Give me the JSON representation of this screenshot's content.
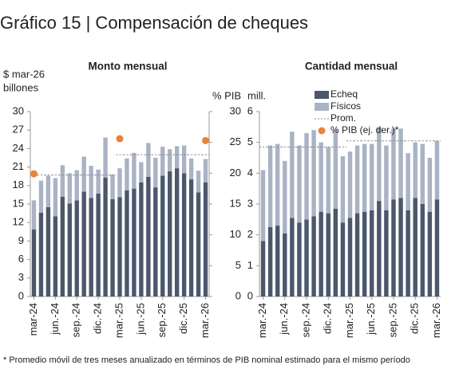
{
  "title": "Gráfico 15 | Compensación de cheques",
  "footnote": "* Promedio móvil de tres meses anualizado en términos de PIB nominal estimado para el mismo período",
  "chart_data": [
    {
      "type": "bar",
      "stacked": true,
      "title": "Monto mensual",
      "ylabel": [
        "$ mar-26",
        "billones"
      ],
      "y2label": "% PIB",
      "categories": [
        "mar-24",
        null,
        null,
        "jun.-24",
        null,
        null,
        "sep.-24",
        null,
        null,
        "dic.-24",
        null,
        null,
        "mar.-25",
        null,
        null,
        "jun.-25",
        null,
        null,
        "sep.-25",
        null,
        null,
        "dic.-25",
        null,
        null,
        "mar.-26"
      ],
      "series": [
        {
          "color": "#4b576b",
          "values": [
            10.9,
            13.6,
            14.5,
            13.0,
            16.2,
            15.1,
            15.6,
            17.0,
            16.0,
            16.7,
            19.3,
            15.8,
            16.1,
            17.2,
            17.5,
            18.5,
            19.4,
            17.7,
            19.6,
            20.3,
            20.8,
            20.0,
            19.0,
            16.9,
            18.5
          ]
        },
        {
          "color": "#a9b3c4",
          "values": [
            4.7,
            5.2,
            5.1,
            6.2,
            5.1,
            4.9,
            4.9,
            5.7,
            5.2,
            3.9,
            6.5,
            4.0,
            4.7,
            5.2,
            5.8,
            3.3,
            5.5,
            4.8,
            4.7,
            3.6,
            3.6,
            4.5,
            3.4,
            3.5,
            3.8
          ]
        },
        {
          "type": "line",
          "dashed": true,
          "color": "#8a8a8a",
          "values": [
            19.7,
            19.7,
            19.7,
            19.7,
            19.7,
            19.7,
            19.7,
            19.7,
            19.7,
            19.7,
            19.7,
            19.7,
            23.0,
            23.0,
            23.0,
            23.0,
            23.0,
            23.0,
            23.0,
            23.0,
            23.0,
            23.0,
            23.0,
            23.0,
            23.0
          ]
        },
        {
          "type": "scatter",
          "axis": "y2",
          "name": "% PIB (ej. der.)*",
          "color": "#e8833a",
          "values": [
            19.9,
            null,
            null,
            null,
            null,
            null,
            null,
            null,
            null,
            null,
            null,
            null,
            25.6,
            null,
            null,
            null,
            null,
            null,
            null,
            null,
            null,
            null,
            null,
            null,
            25.3
          ]
        }
      ],
      "ylim": [
        0,
        30
      ],
      "yticks": [
        0,
        3,
        6,
        9,
        12,
        15,
        18,
        21,
        24,
        27,
        30
      ],
      "y2lim": [
        0,
        30
      ],
      "y2ticks": [
        0,
        5,
        10,
        15,
        20,
        25,
        30
      ]
    },
    {
      "type": "bar",
      "stacked": true,
      "title": "Cantidad mensual",
      "ylabel": [
        "mill."
      ],
      "legend": "top-left",
      "categories": [
        "mar.-24",
        null,
        null,
        "jun.-24",
        null,
        null,
        "sep.-24",
        null,
        null,
        "dic.-24",
        null,
        null,
        "mar.-25",
        null,
        null,
        "jun.-25",
        null,
        null,
        "sep.-25",
        null,
        null,
        "dic.-25",
        null,
        null,
        "mar.-26"
      ],
      "series": [
        {
          "name": "Echeq",
          "color": "#4b576b",
          "values": [
            1.8,
            2.25,
            2.3,
            2.05,
            2.55,
            2.4,
            2.5,
            2.6,
            2.75,
            2.7,
            2.85,
            2.4,
            2.55,
            2.7,
            2.75,
            2.8,
            3.1,
            2.8,
            3.15,
            3.2,
            2.8,
            3.2,
            3.0,
            2.75,
            3.15
          ]
        },
        {
          "name": "Físicos",
          "color": "#a9b3c4",
          "values": [
            2.3,
            2.65,
            2.65,
            2.35,
            2.8,
            2.5,
            2.8,
            2.8,
            2.25,
            2.15,
            2.55,
            2.15,
            2.15,
            2.2,
            2.2,
            2.15,
            2.4,
            2.1,
            2.3,
            2.25,
            1.85,
            1.8,
            1.95,
            1.75,
            1.9
          ]
        },
        {
          "type": "line",
          "dashed": true,
          "name": "Prom.",
          "color": "#8a8a8a",
          "values": [
            4.85,
            4.85,
            4.85,
            4.85,
            4.85,
            4.85,
            4.85,
            4.85,
            4.85,
            4.85,
            4.85,
            4.85,
            5.05,
            5.05,
            5.05,
            5.05,
            5.05,
            5.05,
            5.05,
            5.05,
            5.05,
            5.05,
            5.05,
            5.05,
            5.05
          ]
        }
      ],
      "ylim": [
        0,
        6
      ],
      "yticks": [
        0,
        1,
        2,
        3,
        4,
        5,
        6
      ]
    }
  ]
}
